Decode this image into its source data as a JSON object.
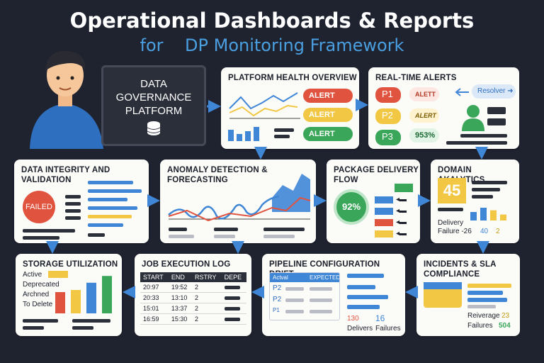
{
  "header": {
    "title": "Operational Dashboards & Reports",
    "subtitle_prefix": "for",
    "subtitle": "DP Monitoring Framework"
  },
  "platform": {
    "line1": "DATA",
    "line2": "GOVERNANCE",
    "line3": "PLATFORM"
  },
  "health": {
    "title": "PLATFORM HEALTH OVERVIEW",
    "alerts": [
      "ALERT",
      "ALERT",
      "ALERT"
    ]
  },
  "realtime": {
    "title": "REAL-TIME ALERTS",
    "p1": "P1",
    "p2": "P2",
    "p3": "P3",
    "b1": "ALETT",
    "b2": "ALERT",
    "b3": "953%",
    "resolver": "Resolver"
  },
  "integrity": {
    "title1": "DATA INTEGRITY AND",
    "title2": "VALIDATION",
    "status": "FAILED"
  },
  "anomaly": {
    "title1": "ANOMALY DETECTION &",
    "title2": "FORECASTING"
  },
  "delivery": {
    "title1": "PACKAGE DELIVERY",
    "title2": "FLOW",
    "pct": "92%"
  },
  "domain": {
    "title": "DOMAIN AKALYTICS",
    "kpi": "45",
    "label1": "Delivery",
    "label2": "Failure -26",
    "v1": "40",
    "v2": "2"
  },
  "storage": {
    "title": "STORAGE UTILIZATION",
    "legend": [
      "Active",
      "Deprecated",
      "Archned",
      "To Delete"
    ]
  },
  "joblog": {
    "title": "JOB EXECUTION LOG",
    "headers": [
      "START",
      "END",
      "RSTRY",
      "DEPE"
    ],
    "rows": [
      [
        "20:97",
        "19:52",
        "2",
        ""
      ],
      [
        "20:33",
        "13:10",
        "2",
        ""
      ],
      [
        "15:01",
        "13:37",
        "2",
        ""
      ],
      [
        "16:59",
        "15:30",
        "2",
        ""
      ]
    ]
  },
  "drift": {
    "title": "PIPELINE CONFIGURATION DRIFT",
    "col1": "Actval",
    "col2": "EXPECTED",
    "rows": [
      "P2",
      "P2",
      "P1"
    ],
    "n1": "130",
    "n2": "16",
    "l1": "Delivers",
    "l2": "Failures"
  },
  "incidents": {
    "title1": "INCIDENTS & SLA",
    "title2": "COMPLIANCE",
    "l1": "Reiverage",
    "v1": "23",
    "l2": "Failures",
    "v2": "504"
  },
  "storage_chart": {
    "type": "bar",
    "values": [
      {
        "v": 50,
        "c": "#e0543f"
      },
      {
        "v": 55,
        "c": "#f2c744"
      },
      {
        "v": 72,
        "c": "#3f86d6"
      },
      {
        "v": 88,
        "c": "#3aa65a"
      }
    ]
  },
  "domain_chart": {
    "type": "bar",
    "values": [
      {
        "v": 40,
        "c": "#3f86d6"
      },
      {
        "v": 60,
        "c": "#3f86d6"
      },
      {
        "v": 48,
        "c": "#f2c744"
      },
      {
        "v": 28,
        "c": "#f2c744"
      }
    ]
  },
  "colors": {
    "bg": "#1f2330",
    "accent": "#4a9fe0",
    "alert_red": "#e0543f",
    "alert_yellow": "#f2c744",
    "alert_green": "#3aa65a"
  }
}
